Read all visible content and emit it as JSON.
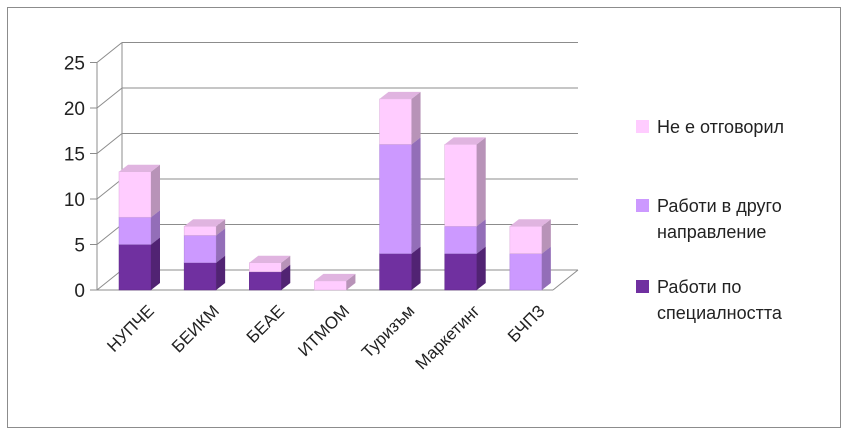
{
  "chart_data": {
    "type": "bar",
    "stacked": true,
    "three_d": true,
    "categories": [
      "НУПЧЕ",
      "БЕИКМ",
      "БЕАЕ",
      "ИТМОМ",
      "Туризъм",
      "Маркетинг",
      "БЧПЗ"
    ],
    "series": [
      {
        "name": "Работи по специалността",
        "values": [
          5,
          3,
          2,
          0,
          4,
          4,
          0
        ],
        "color": "#7030a0"
      },
      {
        "name": "Работи в друго направление",
        "values": [
          3,
          3,
          0,
          0,
          12,
          3,
          4
        ],
        "color": "#cc99ff"
      },
      {
        "name": "Не е отговорил",
        "values": [
          5,
          1,
          1,
          1,
          5,
          9,
          3
        ],
        "color": "#ffccff"
      }
    ],
    "yticks": [
      0,
      5,
      10,
      15,
      20,
      25
    ],
    "ylim": [
      0,
      25
    ],
    "grid": true,
    "legend_position": "right",
    "legend_lines": [
      [
        "Не е отговорил"
      ],
      [
        "Работи в друго",
        "направление"
      ],
      [
        "Работи по",
        "специалността"
      ]
    ]
  }
}
